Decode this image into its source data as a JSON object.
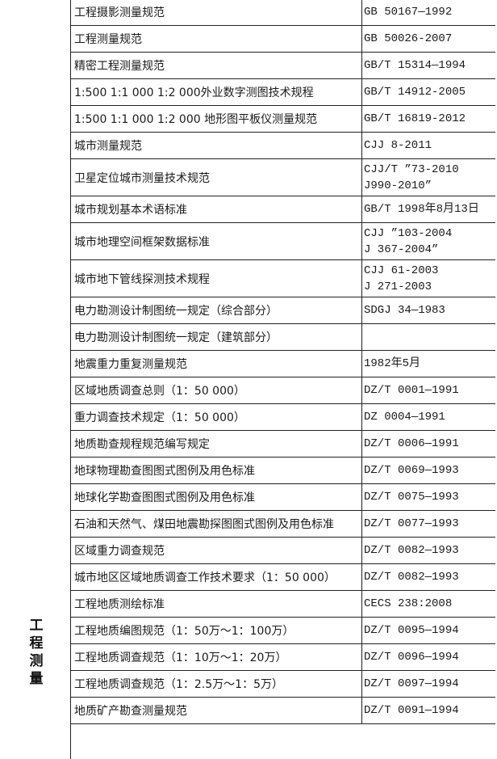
{
  "category": "工程测量",
  "rows": [
    {
      "name": "工程摄影测量规范",
      "code": [
        "GB 50167—1992"
      ]
    },
    {
      "name": "工程测量规范",
      "code": [
        "GB 50026-2007"
      ]
    },
    {
      "name": "精密工程测量规范",
      "code": [
        "GB/T 15314—1994"
      ]
    },
    {
      "name": "1:500 1:1 000 1:2 000外业数字测图技术规程",
      "code": [
        "GB/T 14912-2005"
      ]
    },
    {
      "name": "1:500 1:1 000 1:2 000 地形图平板仪测量规范",
      "code": [
        "GB/T 16819-2012"
      ]
    },
    {
      "name": "城市测量规范",
      "code": [
        "CJJ 8-2011"
      ]
    },
    {
      "name": "卫星定位城市测量技术规范",
      "code": [
        "CJJ/T ”73-2010",
        "J990-2010”"
      ]
    },
    {
      "name": "城市规划基本术语标准",
      "code": [
        "GB/T 1998年8月13日"
      ]
    },
    {
      "name": "城市地理空间框架数据标准",
      "code": [
        "CJJ ”103-2004",
        "J 367-2004”"
      ]
    },
    {
      "name": "城市地下管线探测技术规程",
      "code": [
        "CJJ 61-2003",
        "J 271-2003"
      ]
    },
    {
      "name": "电力勘测设计制图统一规定（综合部分）",
      "code": [
        "SDGJ 34—1983"
      ]
    },
    {
      "name": "电力勘测设计制图统一规定（建筑部分）",
      "code": [
        ""
      ]
    },
    {
      "name": "地震重力重复测量规范",
      "code": [
        "1982年5月"
      ]
    },
    {
      "name": "区域地质调查总则（1：50 000）",
      "code": [
        "DZ/T 0001—1991"
      ]
    },
    {
      "name": "重力调查技术规定（1：50 000）",
      "code": [
        "DZ 0004—1991"
      ]
    },
    {
      "name": "地质勘查规程规范编写规定",
      "code": [
        "DZ/T 0006—1991"
      ]
    },
    {
      "name": "地球物理勘查图图式图例及用色标准",
      "code": [
        "DZ/T 0069—1993"
      ]
    },
    {
      "name": "地球化学勘查图图式图例及用色标准",
      "code": [
        "DZ/T 0075—1993"
      ]
    },
    {
      "name": "石油和天然气、煤田地震勘探图图式图例及用色标准",
      "code": [
        "DZ/T 0077—1993"
      ]
    },
    {
      "name": "区域重力调查规范",
      "code": [
        "DZ/T 0082—1993"
      ]
    },
    {
      "name": "城市地区区域地质调查工作技术要求（1：50 000）",
      "code": [
        "DZ/T 0082—1993"
      ]
    },
    {
      "name": "工程地质测绘标准",
      "code": [
        "CECS 238:2008"
      ]
    },
    {
      "name": "工程地质编图规范（1：50万～1：100万）",
      "code": [
        "DZ/T 0095—1994"
      ]
    },
    {
      "name": "工程地质调查规范（1：10万～1：20万）",
      "code": [
        "DZ/T 0096—1994"
      ]
    },
    {
      "name": "工程地质调查规范（1：2.5万～1：5万）",
      "code": [
        "DZ/T 0097—1994"
      ]
    },
    {
      "name": "地质矿产勘查测量规范",
      "code": [
        "DZ/T 0091—1994"
      ]
    }
  ]
}
